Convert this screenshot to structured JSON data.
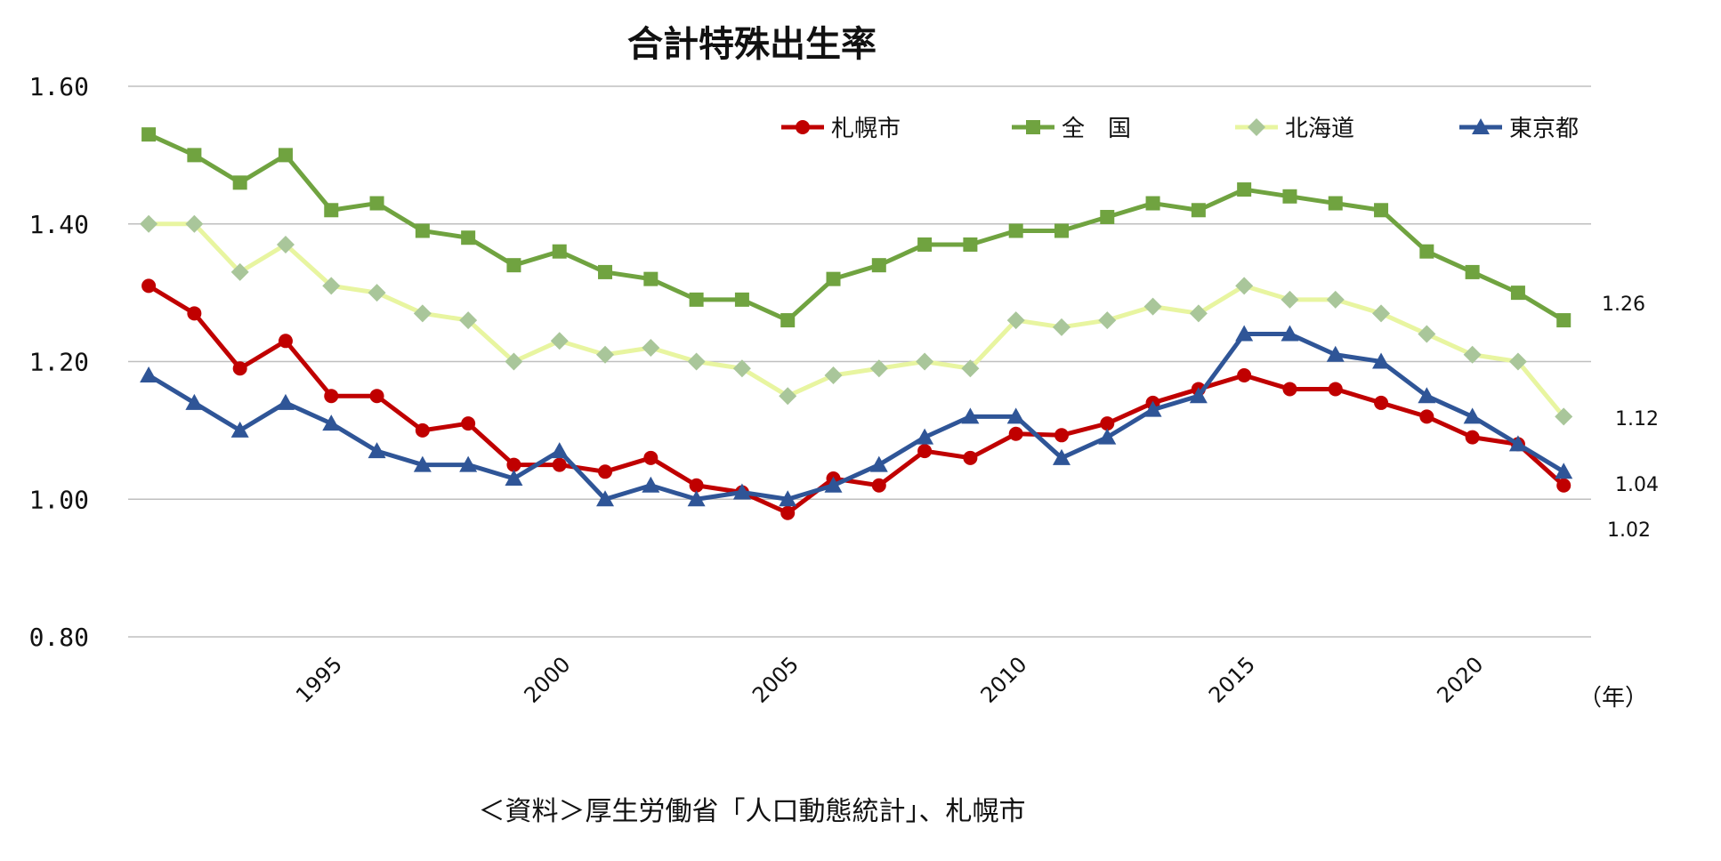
{
  "chart_data": {
    "type": "line",
    "title": "合計特殊出生率",
    "x_unit_label": "（年）",
    "source": "＜資料＞厚生労働省「人口動態統計」、札幌市",
    "ylim": [
      0.8,
      1.6
    ],
    "y_ticks": [
      "1.60",
      "1.40",
      "1.20",
      "1.00",
      "0.80"
    ],
    "y_tick_values": [
      1.6,
      1.4,
      1.2,
      1.0,
      0.8
    ],
    "x_tick_labels": [
      "1995",
      "2000",
      "2005",
      "2010",
      "2015",
      "2020"
    ],
    "x_tick_values": [
      1995,
      2000,
      2005,
      2010,
      2015,
      2020
    ],
    "grid": true,
    "legend_position": "top-right",
    "x": [
      1991,
      1992,
      1993,
      1994,
      1995,
      1996,
      1997,
      1998,
      1999,
      2000,
      2001,
      2002,
      2003,
      2004,
      2005,
      2006,
      2007,
      2008,
      2009,
      2010,
      2011,
      2012,
      2013,
      2014,
      2015,
      2016,
      2017,
      2018,
      2019,
      2020,
      2021,
      2022
    ],
    "series": [
      {
        "name": "札幌市",
        "color": "#c00000",
        "marker": "circle",
        "values": [
          1.31,
          1.27,
          1.19,
          1.23,
          1.15,
          1.15,
          1.1,
          1.11,
          1.05,
          1.05,
          1.04,
          1.06,
          1.02,
          1.01,
          0.98,
          1.03,
          1.02,
          1.07,
          1.06,
          1.095,
          1.093,
          1.11,
          1.14,
          1.16,
          1.18,
          1.16,
          1.16,
          1.14,
          1.12,
          1.09,
          1.08,
          1.02
        ],
        "end_label": "1.02"
      },
      {
        "name": "全　国",
        "color": "#70a340",
        "marker": "square",
        "values": [
          1.53,
          1.5,
          1.46,
          1.5,
          1.42,
          1.43,
          1.39,
          1.38,
          1.34,
          1.36,
          1.33,
          1.32,
          1.29,
          1.29,
          1.26,
          1.32,
          1.34,
          1.37,
          1.37,
          1.39,
          1.39,
          1.41,
          1.43,
          1.42,
          1.45,
          1.44,
          1.43,
          1.42,
          1.36,
          1.33,
          1.3,
          1.26
        ],
        "end_label": "1.26"
      },
      {
        "name": "北海道",
        "color": "#e8f5a0",
        "marker_color": "#a9c69a",
        "marker": "diamond",
        "values": [
          1.4,
          1.4,
          1.33,
          1.37,
          1.31,
          1.3,
          1.27,
          1.26,
          1.2,
          1.23,
          1.21,
          1.22,
          1.2,
          1.19,
          1.15,
          1.18,
          1.19,
          1.2,
          1.19,
          1.26,
          1.25,
          1.26,
          1.28,
          1.27,
          1.31,
          1.29,
          1.29,
          1.27,
          1.24,
          1.21,
          1.2,
          1.12
        ],
        "end_label": "1.12"
      },
      {
        "name": "東京都",
        "color": "#2f5597",
        "marker": "triangle",
        "values": [
          1.18,
          1.14,
          1.1,
          1.14,
          1.11,
          1.07,
          1.05,
          1.05,
          1.03,
          1.07,
          1.0,
          1.02,
          1.0,
          1.01,
          1.0,
          1.02,
          1.05,
          1.09,
          1.12,
          1.12,
          1.06,
          1.09,
          1.13,
          1.15,
          1.24,
          1.24,
          1.21,
          1.2,
          1.15,
          1.12,
          1.08,
          1.04
        ],
        "end_label": "1.04"
      }
    ]
  }
}
